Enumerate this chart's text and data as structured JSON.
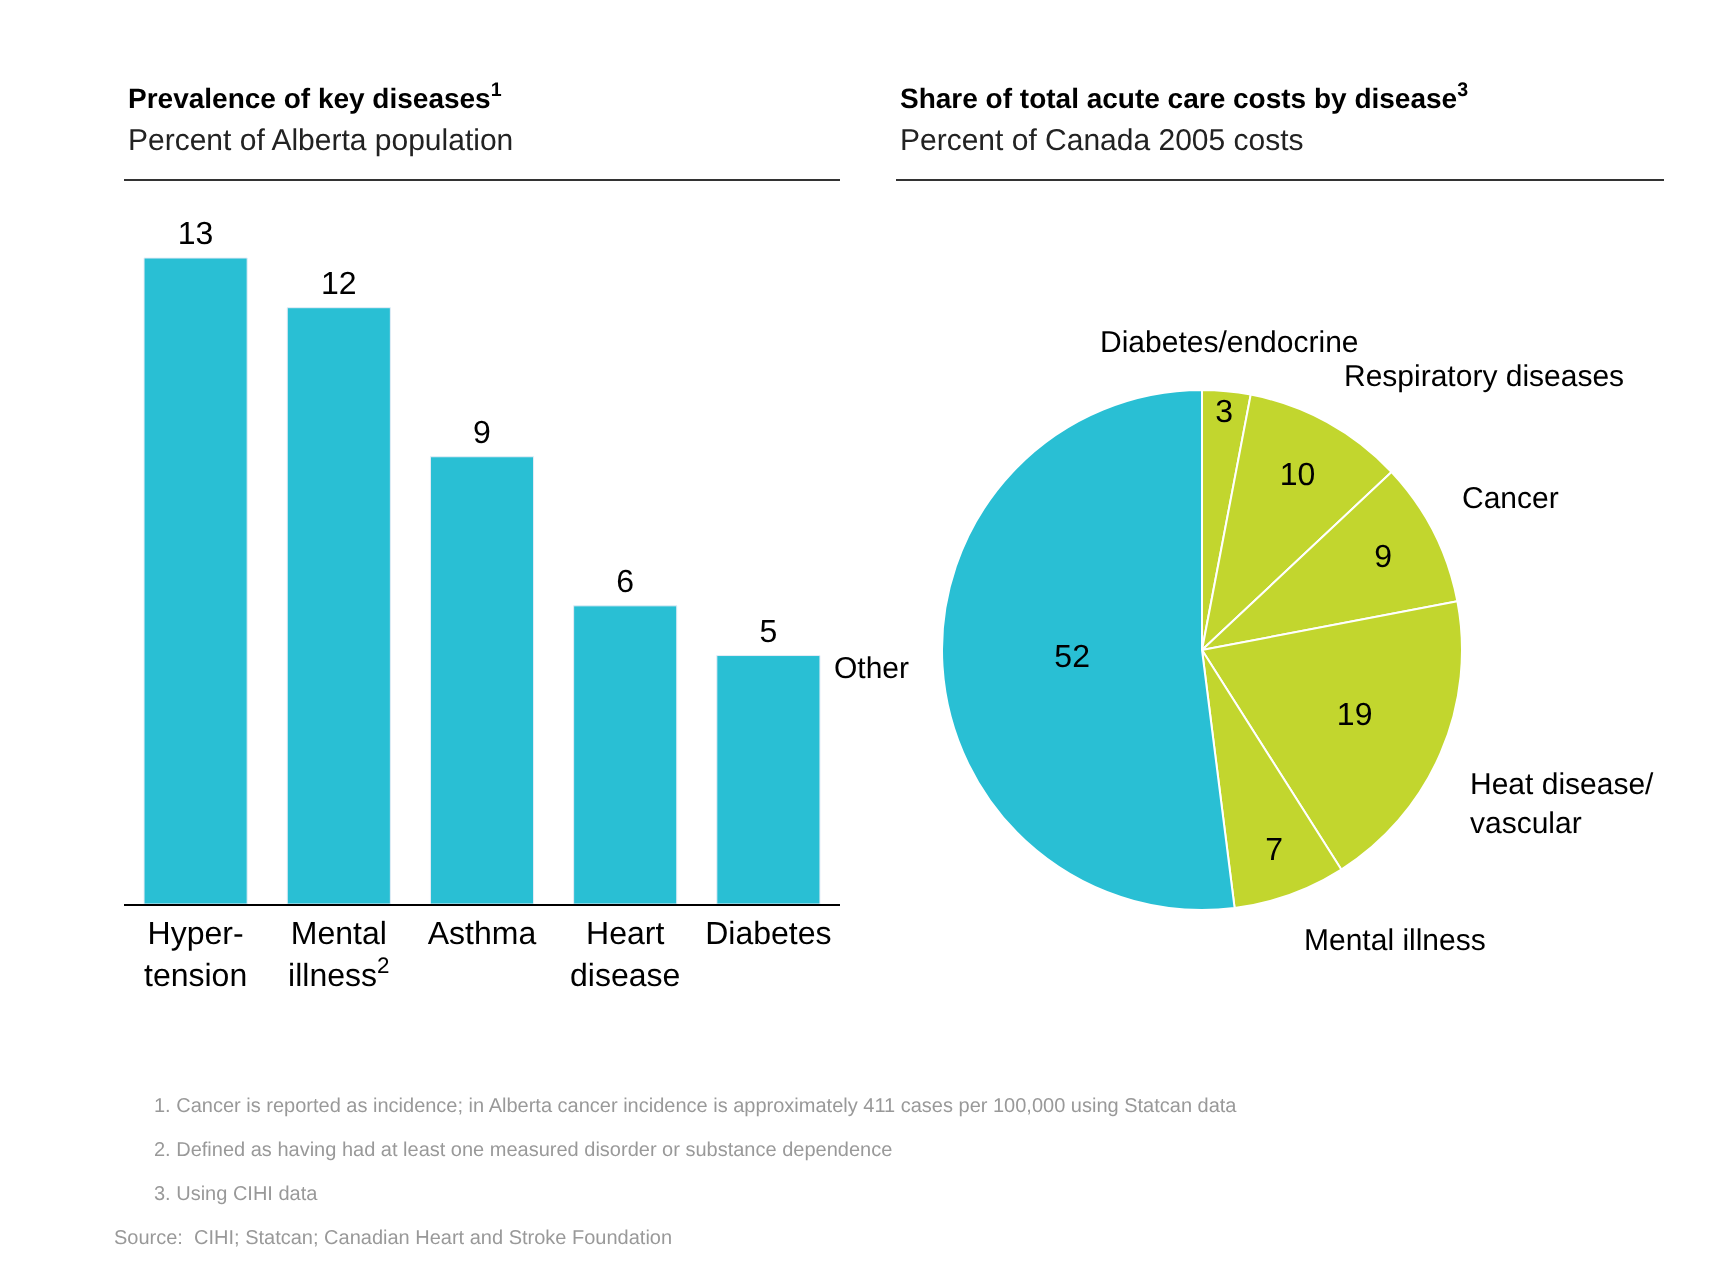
{
  "chart_data": [
    {
      "type": "bar",
      "title": "Prevalence of key diseases$^{1}$",
      "subtitle": "Percent of Alberta population",
      "categories": [
        "Hyper-\ntension",
        "Mental\nillness$^{2}$",
        "Asthma",
        "Heart\ndisease",
        "Diabetes"
      ],
      "values": [
        13,
        12,
        9,
        6,
        5
      ],
      "color": "#29bfd4",
      "data_labels": true
    },
    {
      "type": "pie",
      "title": "Share of total acute care costs by disease$^{3}$",
      "subtitle": "Percent of Canada 2005 costs",
      "categories": [
        "Diabetes/endocrine",
        "Respiratory diseases",
        "Cancer",
        "Heat disease/\nvascular",
        "Mental illness",
        "Other"
      ],
      "values": [
        3,
        10,
        9,
        19,
        7,
        52
      ],
      "colors": [
        "#c2d62e",
        "#c2d62e",
        "#c2d62e",
        "#c2d62e",
        "#c2d62e",
        "#29bfd4"
      ],
      "data_labels": true,
      "annotations": [
        "1. Cancer is reported as incidence; in Alberta cancer incidence is approximately 411 cases per 100,000 using Statcan data",
        "2. Defined as having had at least one measured disorder or substance dependence",
        "3. Using CIHI data",
        "Source:  CIHI; Statcan; Canadian Heart and Stroke Foundation"
      ]
    }
  ]
}
